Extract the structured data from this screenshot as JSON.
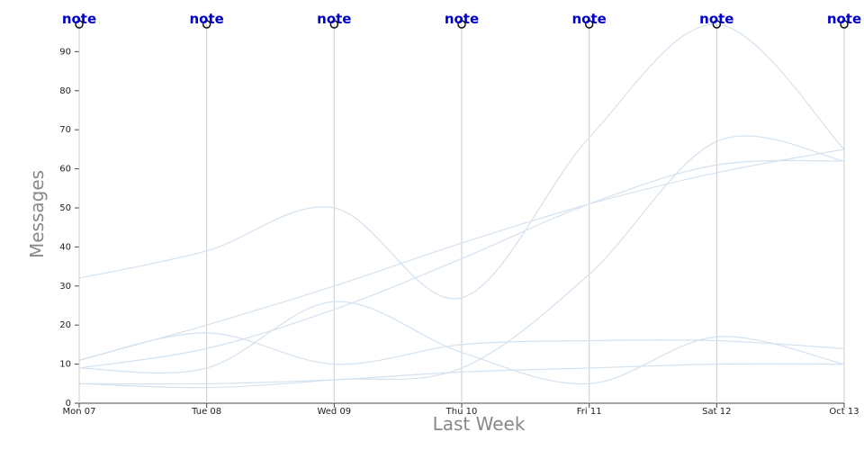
{
  "chart_data": {
    "type": "line",
    "y_label": "Messages",
    "x_label": "Last Week",
    "categories": [
      "Mon 07",
      "Tue 08",
      "Wed 09",
      "Thu 10",
      "Fri 11",
      "Sat 12",
      "Oct 13"
    ],
    "annotations": [
      "note",
      "note",
      "note",
      "note",
      "note",
      "note",
      "note"
    ],
    "series": [
      {
        "color": "#d4e2ef",
        "values": [
          32,
          39,
          50,
          27,
          68,
          97,
          65
        ]
      },
      {
        "color": "#d4e2ef",
        "values": [
          11,
          18,
          10,
          15,
          16,
          16,
          14
        ]
      },
      {
        "color": "#d4e2ef",
        "values": [
          9,
          9,
          26,
          13,
          5,
          17,
          10
        ]
      },
      {
        "color": "#d4e2ef",
        "values": [
          5,
          4,
          6,
          9,
          33,
          67,
          62
        ]
      },
      {
        "color": "#d4e2ef",
        "values": [
          5,
          5,
          6,
          8,
          9,
          10,
          10
        ]
      },
      {
        "color": "#d4e2ef",
        "values": [
          11,
          20,
          30,
          41,
          51,
          59,
          65
        ]
      },
      {
        "color": "#d4e2ef",
        "values": [
          9,
          14,
          24,
          37,
          51,
          61,
          62
        ]
      }
    ],
    "ylim": [
      0,
      97
    ],
    "yticks": [
      0,
      10,
      20,
      30,
      40,
      50,
      60,
      70,
      80,
      90
    ],
    "xgrid": true
  }
}
